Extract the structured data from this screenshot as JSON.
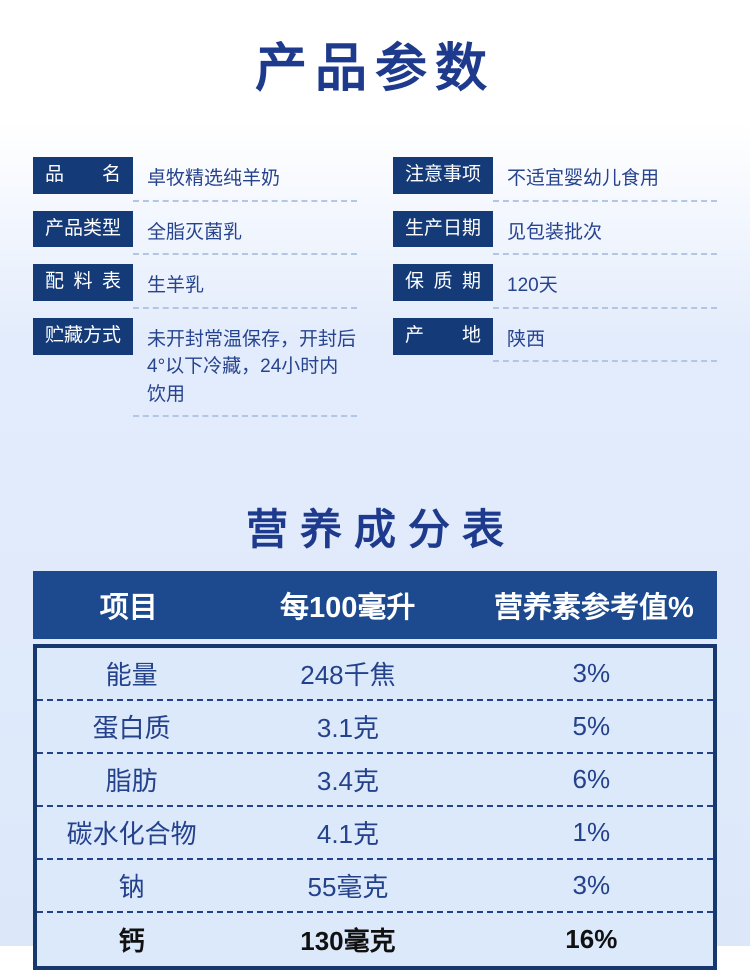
{
  "page": {
    "title": "产品参数"
  },
  "colors": {
    "title_blue": "#1e3a8c",
    "label_box_navy": "#143a78",
    "value_text_blue": "#26438e",
    "table_header_blue": "#1d4a8e",
    "table_border_navy": "#16386e",
    "table_body_bg": "#dce9fa",
    "table_text_blue": "#24418c",
    "info_dashed_line": "#b3c6e4",
    "page_bg_bottom": "#dce8fa",
    "emphasis_row_text": "#111111"
  },
  "product_info": {
    "left": [
      {
        "label": "品名",
        "value": "卓牧精选纯羊奶"
      },
      {
        "label": "产品类型",
        "value": "全脂灭菌乳"
      },
      {
        "label": "配料表",
        "value": "生羊乳"
      },
      {
        "label": "贮藏方式",
        "value": "未开封常温保存，开封后4°以下冷藏，24小时内饮用"
      }
    ],
    "right": [
      {
        "label": "注意事项",
        "value": "不适宜婴幼儿食用"
      },
      {
        "label": "生产日期",
        "value": "见包装批次"
      },
      {
        "label": "保质期",
        "value": "120天"
      },
      {
        "label": "产地",
        "value": "陕西"
      }
    ]
  },
  "nutrition": {
    "title": "营养成分表",
    "headers": [
      "项目",
      "每100毫升",
      "营养素参考值%"
    ],
    "rows": [
      {
        "item": "能量",
        "per100ml": "248千焦",
        "nrv": "3%"
      },
      {
        "item": "蛋白质",
        "per100ml": "3.1克",
        "nrv": "5%"
      },
      {
        "item": "脂肪",
        "per100ml": "3.4克",
        "nrv": "6%"
      },
      {
        "item": "碳水化合物",
        "per100ml": "4.1克",
        "nrv": "1%"
      },
      {
        "item": "钠",
        "per100ml": "55毫克",
        "nrv": "3%"
      },
      {
        "item": "钙",
        "per100ml": "130毫克",
        "nrv": "16%"
      }
    ]
  },
  "chart_data": {
    "type": "table",
    "title": "营养成分表",
    "columns": [
      "项目",
      "每100毫升",
      "营养素参考值%"
    ],
    "rows": [
      [
        "能量",
        "248千焦",
        "3%"
      ],
      [
        "蛋白质",
        "3.1克",
        "5%"
      ],
      [
        "脂肪",
        "3.4克",
        "6%"
      ],
      [
        "碳水化合物",
        "4.1克",
        "1%"
      ],
      [
        "钠",
        "55毫克",
        "3%"
      ],
      [
        "钙",
        "130毫克",
        "16%"
      ]
    ]
  }
}
